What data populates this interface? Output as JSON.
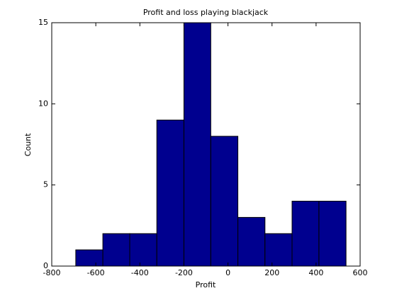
{
  "chart_data": {
    "type": "histogram",
    "title": "Profit and loss playing blackjack",
    "x_label": "Profit",
    "y_label": "Count",
    "bins": [
      -691,
      -568,
      -446,
      -323,
      -200,
      -78,
      45,
      168,
      291,
      413,
      536
    ],
    "counts": [
      1,
      2,
      2,
      9,
      15,
      8,
      3,
      2,
      4,
      4
    ],
    "color": "#00008f",
    "xlim": [
      -800,
      600
    ],
    "xticks": [
      -800,
      -600,
      -400,
      -200,
      0,
      200,
      400,
      600
    ],
    "ylim": [
      0,
      15
    ],
    "yticks": [
      0,
      5,
      10,
      15
    ],
    "grid": false
  }
}
